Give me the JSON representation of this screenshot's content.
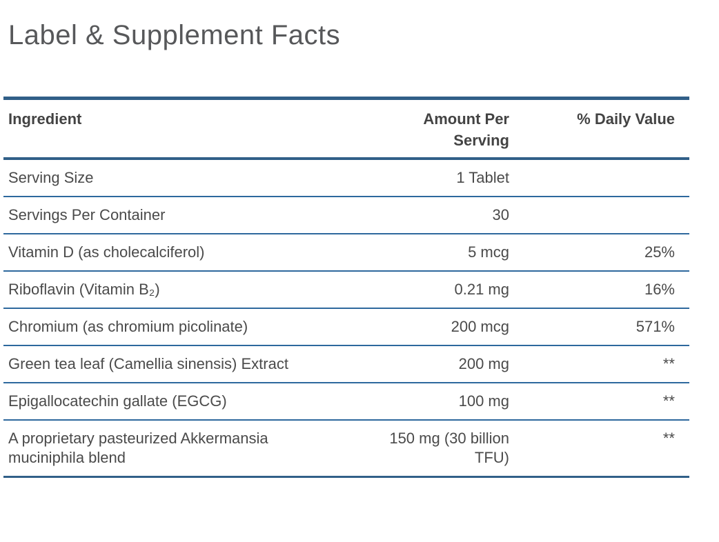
{
  "page": {
    "title": "Label & Supplement Facts"
  },
  "colors": {
    "border_thick": "#315f88",
    "border_thin": "#2d689d",
    "title_text": "#57585a",
    "body_text": "#4a4a4a"
  },
  "table": {
    "headers": {
      "ingredient": "Ingredient",
      "amount": "Amount Per Serving",
      "daily_value": "% Daily Value"
    },
    "rows": [
      {
        "ingredient": "Serving Size",
        "amount": "1 Tablet",
        "daily_value": ""
      },
      {
        "ingredient": "Servings Per Container",
        "amount": "30",
        "daily_value": ""
      },
      {
        "ingredient": "Vitamin D (as cholecalciferol)",
        "amount": "5 mcg",
        "daily_value": "25%"
      },
      {
        "ingredient": "Riboflavin (Vitamin B₂)",
        "amount": "0.21 mg",
        "daily_value": "16%"
      },
      {
        "ingredient": "Chromium (as chromium picolinate)",
        "amount": "200 mcg",
        "daily_value": "571%"
      },
      {
        "ingredient": "Green tea leaf (Camellia sinensis) Extract",
        "amount": "200 mg",
        "daily_value": "**"
      },
      {
        "ingredient": "Epigallocatechin gallate (EGCG)",
        "amount": "100 mg",
        "daily_value": "**"
      },
      {
        "ingredient": "A proprietary pasteurized Akkermansia muciniphila blend",
        "amount": "150 mg (30 billion TFU)",
        "daily_value": "**"
      }
    ]
  }
}
